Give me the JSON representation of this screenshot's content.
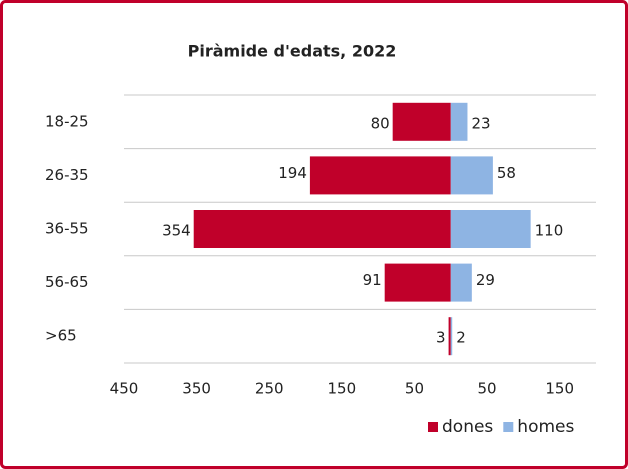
{
  "chart_data": {
    "type": "bar",
    "orientation": "horizontal",
    "stacked": "diverging",
    "title": "Piràmide d'edats, 2022",
    "categories": [
      "18-25",
      "26-35",
      "36-55",
      "56-65",
      ">65"
    ],
    "series": [
      {
        "name": "dones",
        "color": "#c0002a",
        "values": [
          -80,
          -194,
          -354,
          -91,
          -3
        ],
        "value_labels": [
          "80",
          "194",
          "354",
          "91",
          "3"
        ]
      },
      {
        "name": "homes",
        "color": "#8eb4e3",
        "values": [
          23,
          58,
          110,
          29,
          2
        ]
      }
    ],
    "xlim": [
      -450,
      200
    ],
    "xticks": [
      {
        "value": -450,
        "label": "450"
      },
      {
        "value": -350,
        "label": "350"
      },
      {
        "value": -250,
        "label": "250"
      },
      {
        "value": -150,
        "label": "150"
      },
      {
        "value": -50,
        "label": "50"
      },
      50,
      150
    ],
    "grid": true,
    "legend": "bottom-right"
  }
}
